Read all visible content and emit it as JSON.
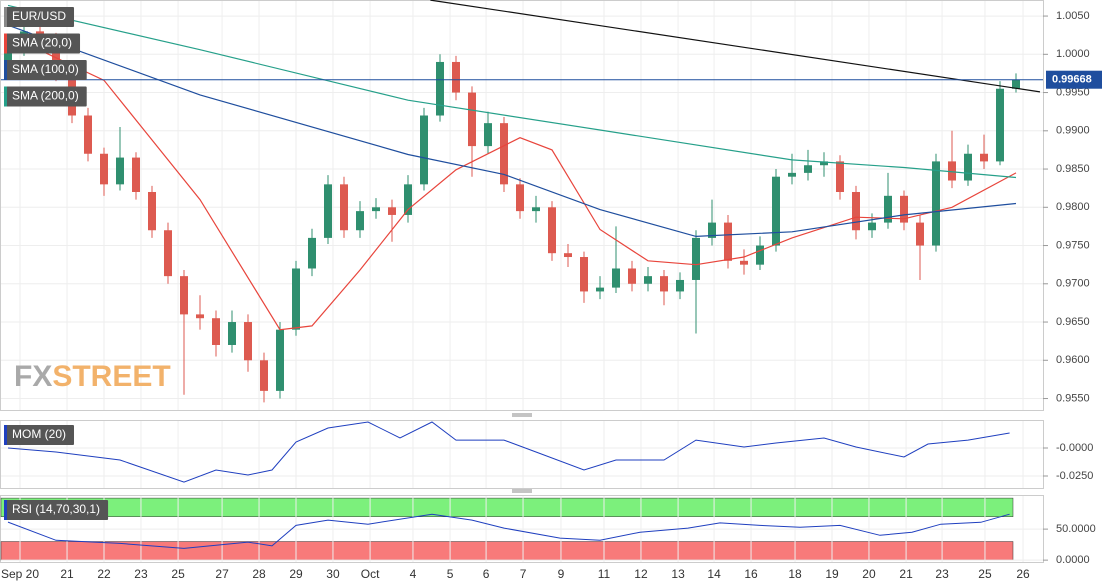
{
  "chart_data": [
    {
      "type": "candlestick",
      "title": "EUR/USD",
      "open": [
        0.9985,
        1.0005,
        1.003,
        1.002,
        0.9975,
        0.992,
        0.987,
        0.983,
        0.9865,
        0.982,
        0.977,
        0.971,
        0.966,
        0.9655,
        0.962,
        0.965,
        0.96,
        0.956,
        0.964,
        0.972,
        0.976,
        0.983,
        0.977,
        0.9795,
        0.98,
        0.979,
        0.983,
        0.992,
        0.999,
        0.995,
        0.988,
        0.991,
        0.983,
        0.9795,
        0.98,
        0.974,
        0.9735,
        0.969,
        0.9695,
        0.972,
        0.97,
        0.971,
        0.969,
        0.9705,
        0.976,
        0.978,
        0.973,
        0.9725,
        0.975,
        0.984,
        0.9845,
        0.9855,
        0.986,
        0.982,
        0.977,
        0.978,
        0.9815,
        0.978,
        0.975,
        0.986,
        0.9835,
        0.987,
        0.986,
        0.9955
      ],
      "high": [
        1.0015,
        1.0042,
        1.004,
        1.0028,
        0.9982,
        0.993,
        0.9878,
        0.9905,
        0.9872,
        0.9828,
        0.978,
        0.9718,
        0.9685,
        0.9665,
        0.9665,
        0.966,
        0.961,
        0.965,
        0.973,
        0.9772,
        0.9842,
        0.984,
        0.9808,
        0.9812,
        0.981,
        0.9842,
        0.993,
        1.0,
        0.9998,
        0.9958,
        0.9925,
        0.9918,
        0.9838,
        0.9815,
        0.9808,
        0.9752,
        0.9742,
        0.971,
        0.9775,
        0.973,
        0.9722,
        0.9718,
        0.9715,
        0.977,
        0.981,
        0.979,
        0.9745,
        0.9762,
        0.985,
        0.987,
        0.9875,
        0.9872,
        0.9868,
        0.9828,
        0.9792,
        0.9845,
        0.9822,
        0.979,
        0.987,
        0.99,
        0.9882,
        0.9895,
        0.9965,
        0.9975
      ],
      "low": [
        0.9975,
        0.9998,
        1.0008,
        0.9965,
        0.991,
        0.986,
        0.9815,
        0.9822,
        0.981,
        0.976,
        0.97,
        0.9555,
        0.964,
        0.9605,
        0.961,
        0.9585,
        0.9545,
        0.955,
        0.9632,
        0.971,
        0.9752,
        0.976,
        0.976,
        0.9785,
        0.9755,
        0.978,
        0.9822,
        0.9912,
        0.994,
        0.984,
        0.987,
        0.982,
        0.9785,
        0.978,
        0.973,
        0.9722,
        0.9675,
        0.968,
        0.9688,
        0.969,
        0.969,
        0.9672,
        0.968,
        0.9635,
        0.975,
        0.972,
        0.9712,
        0.9718,
        0.9742,
        0.983,
        0.9835,
        0.984,
        0.981,
        0.9758,
        0.976,
        0.9772,
        0.977,
        0.9705,
        0.9742,
        0.9825,
        0.9828,
        0.985,
        0.9855,
        0.995
      ],
      "close": [
        1.0005,
        1.003,
        1.002,
        0.9975,
        0.992,
        0.987,
        0.983,
        0.9865,
        0.982,
        0.977,
        0.971,
        0.966,
        0.9655,
        0.962,
        0.965,
        0.96,
        0.956,
        0.964,
        0.972,
        0.976,
        0.983,
        0.977,
        0.9795,
        0.98,
        0.979,
        0.983,
        0.992,
        0.999,
        0.995,
        0.988,
        0.991,
        0.983,
        0.9795,
        0.98,
        0.974,
        0.9735,
        0.969,
        0.9695,
        0.972,
        0.97,
        0.971,
        0.969,
        0.9705,
        0.976,
        0.978,
        0.973,
        0.9725,
        0.975,
        0.984,
        0.9845,
        0.9855,
        0.986,
        0.982,
        0.977,
        0.978,
        0.9815,
        0.978,
        0.975,
        0.986,
        0.9835,
        0.987,
        0.986,
        0.9955,
        0.9967
      ],
      "up_color": "#2f8f6f",
      "down_color": "#dd5a50",
      "xlim": [
        -0.5,
        64.5
      ],
      "ylim": [
        0.9535,
        1.0071
      ],
      "yticks": [
        {
          "value": 1.005,
          "label": "1.0050"
        },
        {
          "value": 1.0,
          "label": "1.0000"
        },
        {
          "value": 0.995,
          "label": "0.9950"
        },
        {
          "value": 0.99,
          "label": "0.9900"
        },
        {
          "value": 0.985,
          "label": "0.9850"
        },
        {
          "value": 0.98,
          "label": "0.9800"
        },
        {
          "value": 0.975,
          "label": "0.9750"
        },
        {
          "value": 0.97,
          "label": "0.9700"
        },
        {
          "value": 0.965,
          "label": "0.9650"
        },
        {
          "value": 0.96,
          "label": "0.9600"
        },
        {
          "value": 0.955,
          "label": "0.9550"
        }
      ],
      "series": [
        {
          "name": "SMA (20,0)",
          "color": "#e8453c",
          "x": [
            0,
            6,
            12,
            17,
            19,
            22,
            25,
            28,
            32,
            34,
            37,
            40,
            43,
            46,
            49,
            53,
            56,
            59,
            63
          ],
          "values": [
            1.0025,
            0.9966,
            0.981,
            0.964,
            0.9645,
            0.9718,
            0.9797,
            0.9849,
            0.9891,
            0.9875,
            0.9771,
            0.973,
            0.9725,
            0.9735,
            0.976,
            0.9787,
            0.9785,
            0.98,
            0.9845
          ]
        },
        {
          "name": "SMA (100,0)",
          "color": "#1f4e9e",
          "x": [
            0,
            12,
            25,
            31,
            37,
            43,
            49,
            56,
            63
          ],
          "values": [
            1.0038,
            0.9947,
            0.9869,
            0.9843,
            0.9797,
            0.9762,
            0.9768,
            0.979,
            0.9805
          ]
        },
        {
          "name": "SMA (200,0)",
          "color": "#26a08a",
          "x": [
            0,
            12,
            25,
            37,
            49,
            56,
            63
          ],
          "values": [
            1.0064,
            1.0006,
            0.994,
            0.9901,
            0.9862,
            0.9852,
            0.9839
          ]
        }
      ],
      "trendline": {
        "color": "#111111",
        "x": [
          26.4,
          64.5
        ],
        "values": [
          1.00709,
          0.99508
        ]
      },
      "last_price": 0.99668,
      "last_price_color": "#1f4e9e",
      "watermark": {
        "prefix": "FX",
        "suffix": "STREET"
      }
    },
    {
      "type": "line",
      "title": "MOM (20)",
      "color": "#1f3fbf",
      "x": [
        0,
        3,
        7,
        11,
        13,
        15,
        16.5,
        18,
        20,
        22.5,
        24.5,
        26.5,
        28,
        31,
        33,
        36,
        38,
        41,
        43,
        46,
        48,
        51,
        53,
        56,
        57.5,
        60,
        62.6
      ],
      "values": [
        0,
        -0.0036,
        -0.0107,
        -0.0304,
        -0.0196,
        -0.0241,
        -0.0196,
        0.0054,
        0.0179,
        0.0232,
        0.0089,
        0.0232,
        0.0071,
        0.0071,
        -0.0036,
        -0.0196,
        -0.0107,
        -0.0107,
        0.0071,
        0.0009,
        0.0045,
        0.0089,
        0.0009,
        -0.008,
        0.0036,
        0.0071,
        0.0134
      ],
      "xlim": [
        -0.5,
        64.5
      ],
      "ylim": [
        -0.0357,
        0.025
      ],
      "yticks": [
        {
          "value": 0,
          "label": "-0.0000"
        },
        {
          "value": -0.025,
          "label": "-0.0250"
        }
      ]
    },
    {
      "type": "line",
      "title": "RSI (14,70,30,1)",
      "color": "#1f3fbf",
      "x": [
        0,
        3,
        7,
        11,
        15,
        16.5,
        18,
        20,
        22.5,
        26.5,
        29,
        31,
        34.5,
        37,
        39.5,
        42.5,
        44.5,
        47,
        49.5,
        52,
        54.5,
        56.5,
        58.3,
        60.8,
        62.6
      ],
      "values": [
        61.3,
        32,
        27,
        19,
        29,
        23,
        56,
        64.5,
        58,
        74,
        64.5,
        51.6,
        35.5,
        32,
        45,
        51.6,
        60,
        56,
        53,
        56,
        40,
        45,
        58,
        61,
        74
      ],
      "bands": [
        {
          "from": 70,
          "to": 100,
          "color": "#7cf07c"
        },
        {
          "from": 0,
          "to": 30,
          "color": "#f87a7a"
        }
      ],
      "xlim": [
        -0.5,
        64.5
      ],
      "ylim": [
        -3,
        105
      ],
      "yticks": [
        {
          "value": 50,
          "label": "50.0000"
        },
        {
          "value": 0,
          "label": "0.0000"
        }
      ],
      "xticks": [
        {
          "value": 0.75,
          "label": "Sep 20"
        },
        {
          "value": 3.69,
          "label": "21"
        },
        {
          "value": 6,
          "label": "22"
        },
        {
          "value": 8.31,
          "label": "23"
        },
        {
          "value": 10.63,
          "label": "25"
        },
        {
          "value": 13.38,
          "label": "27"
        },
        {
          "value": 15.69,
          "label": "28"
        },
        {
          "value": 18,
          "label": "29"
        },
        {
          "value": 20.31,
          "label": "30"
        },
        {
          "value": 22.63,
          "label": "Oct"
        },
        {
          "value": 25.31,
          "label": "4"
        },
        {
          "value": 27.63,
          "label": "5"
        },
        {
          "value": 29.88,
          "label": "6"
        },
        {
          "value": 32.19,
          "label": "7"
        },
        {
          "value": 34.56,
          "label": "9"
        },
        {
          "value": 37.25,
          "label": "11"
        },
        {
          "value": 39.56,
          "label": "12"
        },
        {
          "value": 41.88,
          "label": "13"
        },
        {
          "value": 44.13,
          "label": "14"
        },
        {
          "value": 46.44,
          "label": "16"
        },
        {
          "value": 49.19,
          "label": "18"
        },
        {
          "value": 51.5,
          "label": "19"
        },
        {
          "value": 53.81,
          "label": "20"
        },
        {
          "value": 56.13,
          "label": "21"
        },
        {
          "value": 58.38,
          "label": "23"
        },
        {
          "value": 61.06,
          "label": "25"
        },
        {
          "value": 63.44,
          "label": "26"
        }
      ]
    }
  ]
}
